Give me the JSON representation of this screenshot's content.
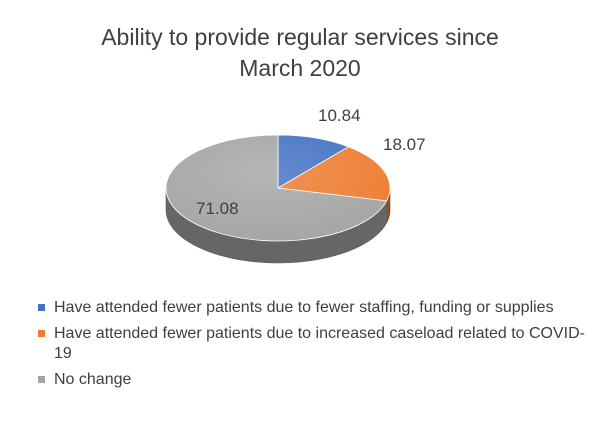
{
  "chart_data": {
    "type": "pie",
    "title_lines": [
      "Ability to provide regular services since",
      "March 2020"
    ],
    "categories": [
      "Have attended fewer patients due to fewer staffing, funding or supplies",
      "Have attended fewer patients due to increased caseload related to COVID-19",
      "No change"
    ],
    "values": [
      10.84,
      18.07,
      71.08
    ],
    "value_labels": [
      "10.84",
      "18.07",
      "71.08"
    ],
    "colors": [
      "#4472c4",
      "#ed7d31",
      "#a5a5a5"
    ],
    "legend_position": "bottom",
    "style": "3d"
  }
}
